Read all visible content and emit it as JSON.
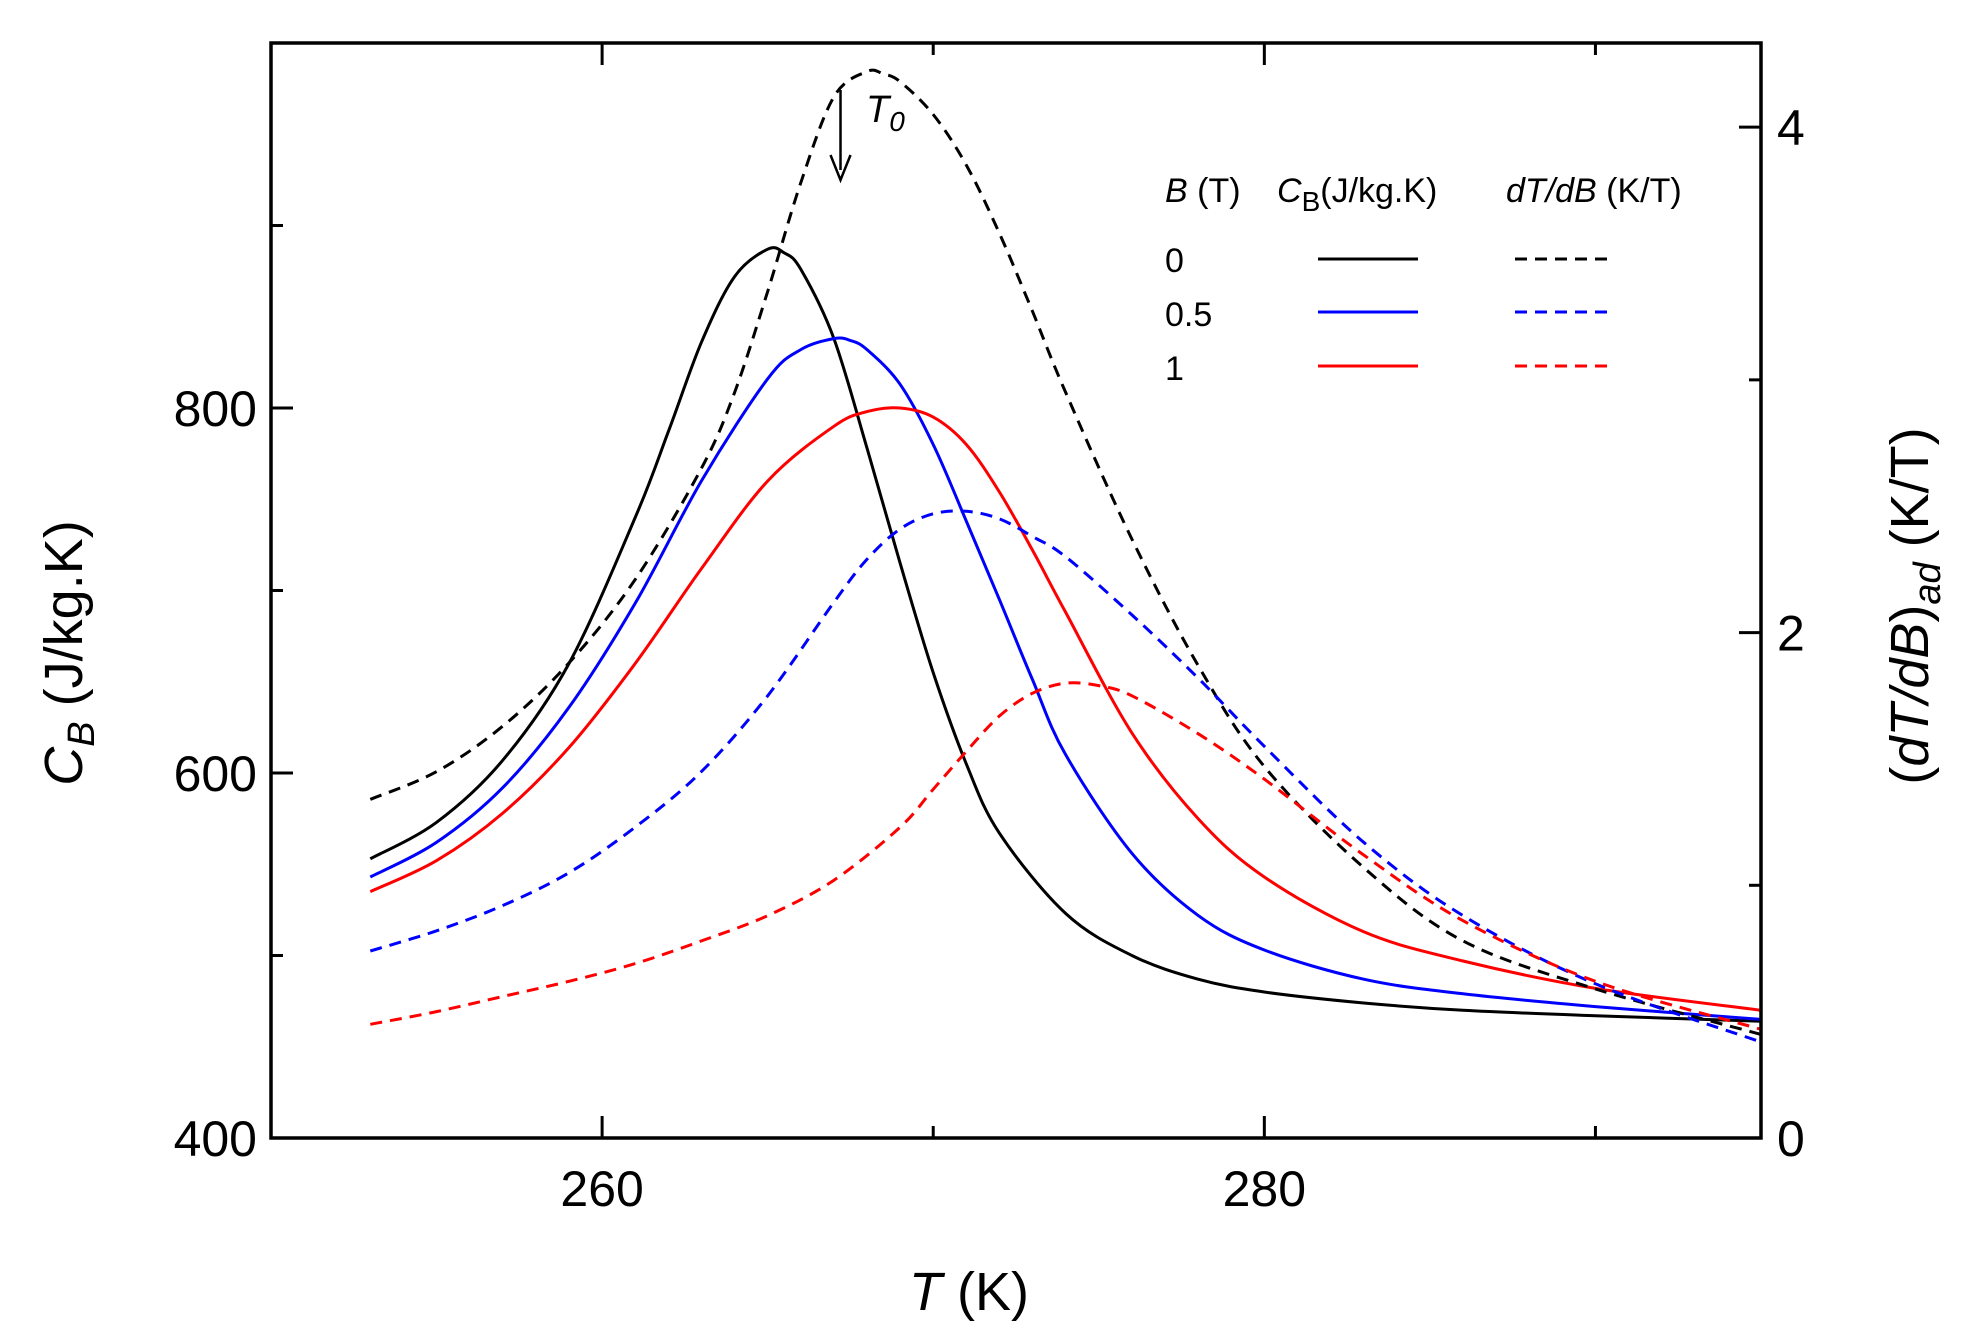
{
  "chart_data": {
    "type": "line",
    "xlabel": {
      "var": "T",
      "unit": " (K)"
    },
    "ylabel_left": {
      "var": "C",
      "sub": "B",
      "unit": " (J/kg.K)"
    },
    "ylabel_right": {
      "prefix": "(",
      "var": "dT/dB",
      "closing": ")",
      "sub": "ad",
      "unit": " (K/T)"
    },
    "xlim": [
      250,
      295
    ],
    "ylim_left": [
      400,
      1000
    ],
    "ylim_right": [
      0,
      4.333
    ],
    "x_ticks": [
      260,
      280
    ],
    "x_minor_ticks": [
      250,
      270,
      290
    ],
    "y_left_ticks": [
      400,
      600,
      800
    ],
    "y_left_minor_ticks": [
      500,
      700,
      900
    ],
    "y_right_ticks": [
      0,
      2,
      4
    ],
    "y_right_minor_ticks": [
      1,
      3
    ],
    "annotation": {
      "text": "T",
      "sub": "0",
      "x": 267.2
    },
    "legend": {
      "header": {
        "b_var": "B",
        "b_unit": " (T)",
        "c_var": "C",
        "c_sub": "B",
        "c_unit": "(J/kg.K)",
        "d_var": "dT/dB",
        "d_unit": " (K/T)"
      },
      "rows": [
        {
          "label": "0",
          "color": "#000000"
        },
        {
          "label": "0.5",
          "color": "#0000ff"
        },
        {
          "label": "1",
          "color": "#ff0000"
        }
      ]
    },
    "series": [
      {
        "name": "C_B, B = 0 T",
        "axis": "left",
        "style": "solid",
        "color": "#000000",
        "x": [
          253,
          255,
          257,
          259,
          261,
          262,
          263,
          264,
          265,
          265.5,
          266,
          267,
          268,
          269,
          270,
          271,
          272,
          274,
          276,
          278,
          280,
          283,
          286,
          290,
          295
        ],
        "y": [
          553,
          573,
          607,
          660,
          740,
          787,
          836,
          872,
          887,
          885,
          876,
          838,
          778,
          715,
          655,
          605,
          567,
          523,
          500,
          487,
          480,
          474,
          470,
          467,
          464
        ]
      },
      {
        "name": "C_B, B = 0.5 T",
        "axis": "left",
        "style": "solid",
        "color": "#0000ff",
        "x": [
          253,
          255,
          257,
          259,
          261,
          263,
          265,
          266,
          267,
          267.5,
          268,
          269,
          270,
          271,
          272,
          273,
          274,
          276,
          278,
          280,
          283,
          286,
          290,
          295
        ],
        "y": [
          543,
          562,
          592,
          636,
          693,
          760,
          816,
          832,
          838,
          837,
          832,
          813,
          780,
          738,
          695,
          651,
          610,
          556,
          522,
          503,
          487,
          479,
          472,
          465
        ]
      },
      {
        "name": "C_B, B = 1 T",
        "axis": "left",
        "style": "solid",
        "color": "#ff0000",
        "x": [
          253,
          255,
          257,
          259,
          261,
          263,
          265,
          267,
          268,
          269,
          270,
          271,
          272,
          273,
          274,
          276,
          278,
          280,
          283,
          286,
          290,
          295
        ],
        "y": [
          535,
          552,
          578,
          614,
          660,
          712,
          760,
          790,
          798,
          800,
          795,
          780,
          754,
          722,
          688,
          622,
          575,
          543,
          513,
          497,
          482,
          470
        ]
      },
      {
        "name": "dT/dB, B = 0 T",
        "axis": "right",
        "style": "dashed",
        "color": "#000000",
        "x": [
          253,
          255,
          257,
          259,
          261,
          263,
          264,
          265,
          266,
          267,
          268,
          268.5,
          269,
          270,
          271,
          272,
          273,
          274,
          276,
          278,
          280,
          283,
          286,
          290,
          295
        ],
        "y": [
          1.34,
          1.45,
          1.63,
          1.88,
          2.21,
          2.65,
          2.95,
          3.35,
          3.78,
          4.12,
          4.22,
          4.21,
          4.18,
          4.05,
          3.85,
          3.58,
          3.27,
          2.95,
          2.37,
          1.87,
          1.47,
          1.07,
          0.78,
          0.59,
          0.41
        ]
      },
      {
        "name": "dT/dB, B = 0.5 T",
        "axis": "right",
        "style": "dashed",
        "color": "#0000ff",
        "x": [
          253,
          255,
          257,
          259,
          261,
          263,
          265,
          267,
          268,
          269,
          270,
          271,
          272,
          273,
          274,
          276,
          278,
          280,
          283,
          286,
          290,
          295
        ],
        "y": [
          0.74,
          0.82,
          0.92,
          1.05,
          1.23,
          1.45,
          1.75,
          2.12,
          2.29,
          2.41,
          2.47,
          2.48,
          2.45,
          2.38,
          2.3,
          2.07,
          1.82,
          1.55,
          1.17,
          0.88,
          0.61,
          0.38
        ]
      },
      {
        "name": "dT/dB, B = 1 T",
        "axis": "right",
        "style": "dashed",
        "color": "#ff0000",
        "x": [
          253,
          255,
          257,
          259,
          261,
          263,
          265,
          267,
          269,
          270,
          271,
          272,
          273,
          274,
          275,
          276,
          278,
          280,
          283,
          286,
          290,
          295
        ],
        "y": [
          0.45,
          0.5,
          0.56,
          0.62,
          0.69,
          0.78,
          0.88,
          1.02,
          1.23,
          1.38,
          1.53,
          1.67,
          1.76,
          1.8,
          1.79,
          1.75,
          1.6,
          1.42,
          1.12,
          0.86,
          0.62,
          0.43
        ]
      }
    ]
  }
}
